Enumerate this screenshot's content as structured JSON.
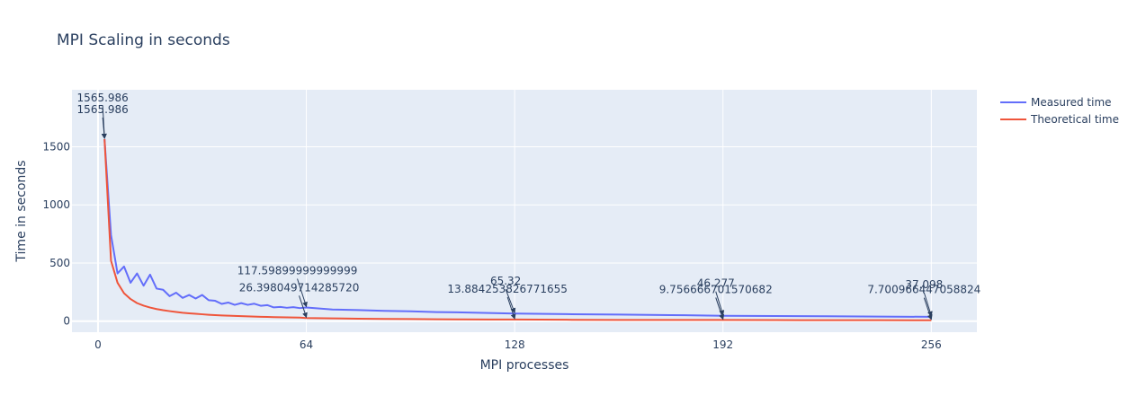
{
  "chart_data": {
    "type": "line",
    "title": "MPI Scaling in seconds",
    "xlabel": "MPI processes",
    "ylabel": "Time in seconds",
    "xlim": [
      -8,
      270
    ],
    "ylim": [
      -95,
      1990
    ],
    "x_ticks": [
      0,
      64,
      128,
      192,
      256
    ],
    "x_tick_labels": [
      "0",
      "64",
      "128",
      "192",
      "256"
    ],
    "y_ticks": [
      0,
      500,
      1000,
      1500
    ],
    "y_tick_labels": [
      "0",
      "500",
      "1000",
      "1500"
    ],
    "grid": true,
    "legend_position": "top-right",
    "colors": {
      "measured": "#636efa",
      "theoretical": "#ef553b",
      "plot_bg": "#e5ecf6",
      "grid": "#ffffff",
      "text": "#2a3f5f"
    },
    "series": [
      {
        "name": "Measured time",
        "x": [
          2,
          4,
          6,
          8,
          10,
          12,
          14,
          16,
          18,
          20,
          22,
          24,
          26,
          28,
          30,
          32,
          34,
          36,
          38,
          40,
          42,
          44,
          46,
          48,
          50,
          52,
          54,
          56,
          58,
          60,
          62,
          64,
          72,
          80,
          88,
          96,
          104,
          112,
          120,
          128,
          144,
          160,
          176,
          192,
          208,
          224,
          240,
          256
        ],
        "y": [
          1565.986,
          740,
          410,
          470,
          330,
          410,
          305,
          400,
          280,
          270,
          215,
          245,
          200,
          225,
          195,
          225,
          180,
          175,
          148,
          160,
          140,
          155,
          140,
          150,
          132,
          138,
          118,
          122,
          115,
          120,
          112,
          117.599,
          100,
          95,
          88,
          85,
          78,
          75,
          70,
          65.32,
          60,
          57,
          52,
          46.277,
          44,
          42,
          39,
          37.098
        ]
      },
      {
        "name": "Theoretical time",
        "x": [
          2,
          4,
          6,
          8,
          10,
          12,
          14,
          16,
          18,
          20,
          22,
          24,
          26,
          28,
          30,
          32,
          34,
          36,
          38,
          40,
          42,
          44,
          46,
          48,
          50,
          52,
          54,
          56,
          58,
          60,
          62,
          64,
          72,
          80,
          88,
          96,
          104,
          112,
          120,
          128,
          144,
          160,
          176,
          192,
          208,
          224,
          240,
          256
        ],
        "y": [
          1565.986,
          520,
          330,
          240,
          190,
          155,
          133,
          117,
          104,
          94,
          86,
          79,
          72,
          67,
          63,
          59,
          55,
          52,
          49,
          47,
          45,
          43,
          41,
          39,
          37.5,
          36,
          34.7,
          33.5,
          32.3,
          31.2,
          30.2,
          26.398,
          23.5,
          21.1,
          19.2,
          17.6,
          16.2,
          15.1,
          14.1,
          13.884,
          11.7,
          10.5,
          9.9,
          9.757,
          8.9,
          8.3,
          7.9,
          7.701
        ]
      }
    ],
    "annotations": [
      {
        "series": 0,
        "x": 2,
        "y": 1565.986,
        "text": "1565.986",
        "ax": -2,
        "ay": -40
      },
      {
        "series": 1,
        "x": 2,
        "y": 1565.986,
        "text": "1565.986",
        "ax": -2,
        "ay": -27
      },
      {
        "series": 0,
        "x": 64,
        "y": 117.599,
        "text": "117.59899999999999",
        "ax": -10,
        "ay": -35
      },
      {
        "series": 1,
        "x": 64,
        "y": 26.398,
        "text": "26.398049714285720",
        "ax": -8,
        "ay": -28
      },
      {
        "series": 0,
        "x": 128,
        "y": 65.32,
        "text": "65.32",
        "ax": -10,
        "ay": -30
      },
      {
        "series": 1,
        "x": 128,
        "y": 13.884,
        "text": "13.884253826771655",
        "ax": -8,
        "ay": -28
      },
      {
        "series": 0,
        "x": 192,
        "y": 46.277,
        "text": "46.277",
        "ax": -8,
        "ay": -30
      },
      {
        "series": 1,
        "x": 192,
        "y": 9.757,
        "text": "9.756666701570682",
        "ax": -8,
        "ay": -28
      },
      {
        "series": 0,
        "x": 256,
        "y": 37.098,
        "text": "37.098",
        "ax": -8,
        "ay": -30
      },
      {
        "series": 1,
        "x": 256,
        "y": 7.701,
        "text": "7.700966447058824",
        "ax": -8,
        "ay": -28
      }
    ]
  }
}
